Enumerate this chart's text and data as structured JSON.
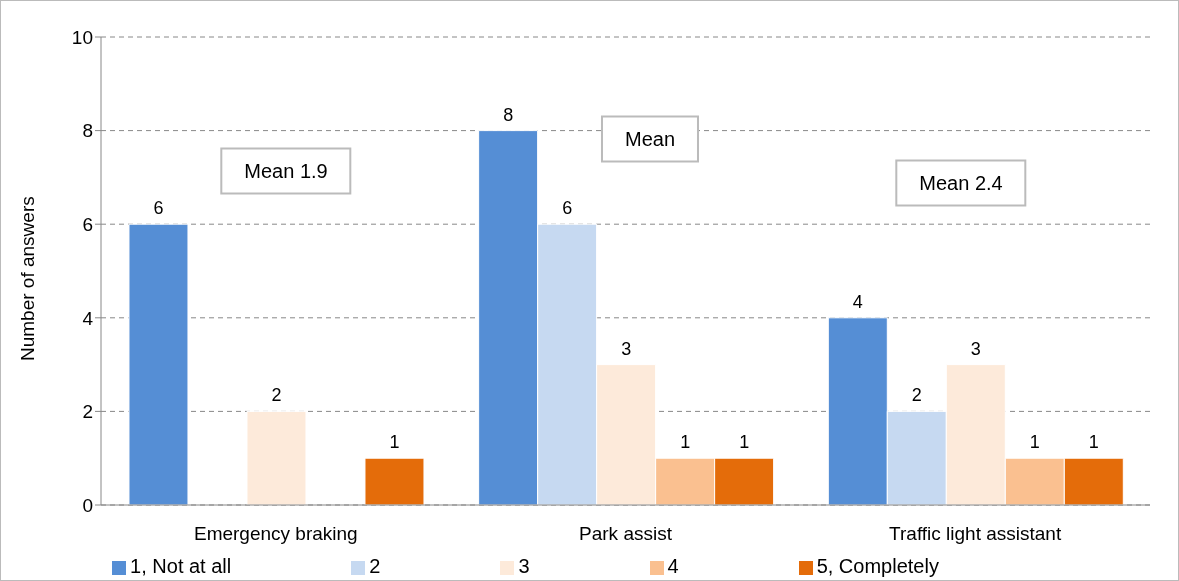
{
  "chart_data": {
    "type": "bar",
    "ylabel": "Number of answers",
    "categories": [
      "Emergency braking",
      "Park assist",
      "Traffic light assistant"
    ],
    "series": [
      {
        "name": "1, Not at all",
        "color": "#558ed5",
        "values": [
          6,
          8,
          4
        ]
      },
      {
        "name": "2",
        "color": "#c6d9f1",
        "values": [
          null,
          6,
          2
        ]
      },
      {
        "name": "3",
        "color": "#fdeada",
        "values": [
          2,
          3,
          3
        ]
      },
      {
        "name": "4",
        "color": "#fac090",
        "values": [
          null,
          1,
          1
        ]
      },
      {
        "name": "5, Completely",
        "color": "#e46c0a",
        "values": [
          1,
          1,
          1
        ]
      }
    ],
    "ylim": [
      0,
      10
    ],
    "yticks": [
      0,
      2,
      4,
      6,
      8,
      10
    ],
    "grid": "y",
    "legend": "bottom",
    "data_labels": true,
    "annotations": [
      "Mean 1.9",
      "Mean",
      "Mean 2.4"
    ]
  }
}
